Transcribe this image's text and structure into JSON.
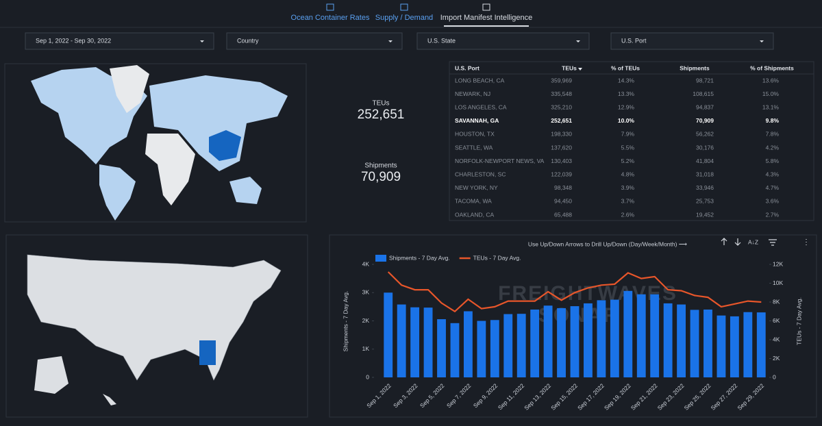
{
  "tabs": [
    "Ocean Container Rates",
    "Supply / Demand",
    "Import Manifest Intelligence"
  ],
  "active_tab": 2,
  "filters": [
    "Sep 1, 2022 - Sep 30, 2022",
    "Country",
    "U.S. State",
    "U.S. Port"
  ],
  "kpis": [
    {
      "label": "TEUs",
      "value": "252,651"
    },
    {
      "label": "Shipments",
      "value": "70,909"
    }
  ],
  "table": {
    "headers": [
      "U.S. Port",
      "TEUs",
      "% of TEUs",
      "Shipments",
      "% of Shipments"
    ],
    "selected_row": 3,
    "rows": [
      [
        "LONG BEACH, CA",
        "359,969",
        "14.3%",
        "98,721",
        "13.6%"
      ],
      [
        "NEWARK, NJ",
        "335,548",
        "13.3%",
        "108,615",
        "15.0%"
      ],
      [
        "LOS ANGELES, CA",
        "325,210",
        "12.9%",
        "94,837",
        "13.1%"
      ],
      [
        "SAVANNAH, GA",
        "252,651",
        "10.0%",
        "70,909",
        "9.8%"
      ],
      [
        "HOUSTON, TX",
        "198,330",
        "7.9%",
        "56,262",
        "7.8%"
      ],
      [
        "SEATTLE, WA",
        "137,620",
        "5.5%",
        "30,176",
        "4.2%"
      ],
      [
        "NORFOLK-NEWPORT NEWS, VA",
        "130,403",
        "5.2%",
        "41,804",
        "5.8%"
      ],
      [
        "CHARLESTON, SC",
        "122,039",
        "4.8%",
        "31,018",
        "4.3%"
      ],
      [
        "NEW YORK, NY",
        "98,348",
        "3.9%",
        "33,946",
        "4.7%"
      ],
      [
        "TACOMA, WA",
        "94,450",
        "3.7%",
        "25,753",
        "3.6%"
      ],
      [
        "OAKLAND, CA",
        "65,488",
        "2.6%",
        "19,452",
        "2.7%"
      ]
    ]
  },
  "hint": "Use Up/Down Arrows to Drill Up/Down (Day/Week/Month)  ⟶",
  "watermark": [
    "FREIGHTWAVES",
    "SONAR"
  ],
  "chart_data": {
    "type": "combo",
    "categories": [
      "Sep 1, 2022",
      null,
      "Sep 3, 2022",
      null,
      "Sep 5, 2022",
      null,
      "Sep 7, 2022",
      null,
      "Sep 9, 2022",
      null,
      "Sep 11, 2022",
      null,
      "Sep 13, 2022",
      null,
      "Sep 15, 2022",
      null,
      "Sep 17, 2022",
      null,
      "Sep 19, 2022",
      null,
      "Sep 21, 2022",
      null,
      "Sep 23, 2022",
      null,
      "Sep 25, 2022",
      null,
      "Sep 27, 2022",
      null,
      "Sep 29, 2022"
    ],
    "series": [
      {
        "name": "Shipments - 7 Day Avg.",
        "type": "bar",
        "axis": "y",
        "color": "#1a73e8",
        "values": [
          3000,
          2580,
          2480,
          2470,
          2060,
          1920,
          2340,
          2000,
          2030,
          2240,
          2250,
          2400,
          2540,
          2450,
          2520,
          2620,
          2730,
          2750,
          3060,
          2940,
          2940,
          2620,
          2580,
          2390,
          2400,
          2190,
          2160,
          2310,
          2300
        ]
      },
      {
        "name": "TEUs - 7 Day Avg.",
        "type": "line",
        "axis": "y2",
        "color": "#e8562a",
        "values": [
          11200,
          9800,
          9300,
          9300,
          7900,
          7000,
          8300,
          7300,
          7500,
          8100,
          8100,
          8100,
          9100,
          8200,
          9000,
          9500,
          9800,
          9900,
          11100,
          10500,
          10700,
          9300,
          9200,
          8700,
          8500,
          7500,
          7800,
          8100,
          8000
        ]
      }
    ],
    "y_label": "Shipments - 7 Day Avg.",
    "y2_label": "TEUs - 7 Day Avg.",
    "ylim": [
      0,
      4000
    ],
    "yticks": [
      0,
      {
        "value": 1000,
        "label": "1K"
      },
      {
        "value": 2000,
        "label": "2K"
      },
      {
        "value": 3000,
        "label": "3K"
      },
      {
        "value": 4000,
        "label": "4K"
      }
    ],
    "y2lim": [
      0,
      12000
    ],
    "y2ticks": [
      0,
      {
        "value": 2000,
        "label": "2K"
      },
      {
        "value": 4000,
        "label": "4K"
      },
      {
        "value": 6000,
        "label": "6K"
      },
      {
        "value": 8000,
        "label": "8K"
      },
      {
        "value": 10000,
        "label": "10K"
      },
      {
        "value": 12000,
        "label": "12K"
      }
    ],
    "grid": false,
    "legend": "top-left"
  }
}
